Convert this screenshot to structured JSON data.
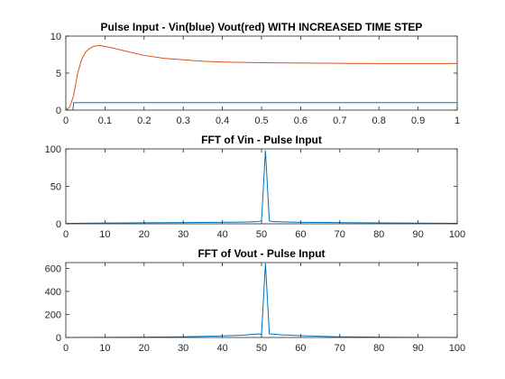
{
  "chart_data": [
    {
      "type": "line",
      "title": "Pulse Input - Vin(blue) Vout(red) WITH INCREASED TIME STEP",
      "xlabel": "",
      "ylabel": "",
      "xlim": [
        0,
        1
      ],
      "ylim": [
        0,
        10
      ],
      "xticks": [
        "0",
        "0.1",
        "0.2",
        "0.3",
        "0.4",
        "0.5",
        "0.6",
        "0.7",
        "0.8",
        "0.9",
        "1"
      ],
      "yticks": [
        "0",
        "5",
        "10"
      ],
      "grid": false,
      "series": [
        {
          "color": "#0072BD",
          "x": [
            0,
            0.018,
            0.02,
            1
          ],
          "y": [
            0,
            0,
            1.0,
            1.0
          ]
        },
        {
          "color": "#D95319",
          "x": [
            0,
            0.01,
            0.02,
            0.03,
            0.04,
            0.05,
            0.06,
            0.07,
            0.08,
            0.09,
            0.1,
            0.12,
            0.15,
            0.2,
            0.25,
            0.3,
            0.35,
            0.4,
            0.5,
            0.6,
            0.7,
            0.8,
            0.9,
            1
          ],
          "y": [
            0,
            0.4,
            2.0,
            4.9,
            6.8,
            7.8,
            8.3,
            8.6,
            8.7,
            8.7,
            8.6,
            8.4,
            8.0,
            7.4,
            7.0,
            6.8,
            6.6,
            6.5,
            6.4,
            6.35,
            6.32,
            6.3,
            6.3,
            6.3
          ]
        }
      ]
    },
    {
      "type": "line",
      "title": "FFT of Vin - Pulse Input",
      "xlabel": "",
      "ylabel": "",
      "xlim": [
        0,
        100
      ],
      "ylim": [
        0,
        100
      ],
      "xticks": [
        "0",
        "10",
        "20",
        "30",
        "40",
        "50",
        "60",
        "70",
        "80",
        "90",
        "100"
      ],
      "yticks": [
        "0",
        "50",
        "100"
      ],
      "grid": false,
      "series": [
        {
          "color": "#0072BD",
          "x": [
            0,
            10,
            20,
            30,
            40,
            45,
            49,
            50,
            51,
            52,
            53,
            60,
            70,
            80,
            90,
            100
          ],
          "y": [
            0.5,
            1.0,
            1.3,
            1.6,
            2.0,
            2.3,
            2.8,
            4.0,
            98,
            4.0,
            2.8,
            2.0,
            1.6,
            1.2,
            0.9,
            0.6
          ]
        }
      ]
    },
    {
      "type": "line",
      "title": "FFT of Vout - Pulse Input",
      "xlabel": "",
      "ylabel": "",
      "xlim": [
        0,
        100
      ],
      "ylim": [
        0,
        650
      ],
      "xticks": [
        "0",
        "10",
        "20",
        "30",
        "40",
        "50",
        "60",
        "70",
        "80",
        "90",
        "100"
      ],
      "yticks": [
        "0",
        "200",
        "400",
        "600"
      ],
      "grid": false,
      "series": [
        {
          "color": "#0072BD",
          "x": [
            0,
            10,
            20,
            30,
            40,
            45,
            49,
            50,
            51,
            52,
            55,
            60,
            70,
            80,
            90,
            100
          ],
          "y": [
            0,
            1,
            3,
            6,
            14,
            20,
            30,
            28,
            645,
            32,
            24,
            16,
            6,
            3,
            1,
            0
          ]
        }
      ]
    }
  ]
}
